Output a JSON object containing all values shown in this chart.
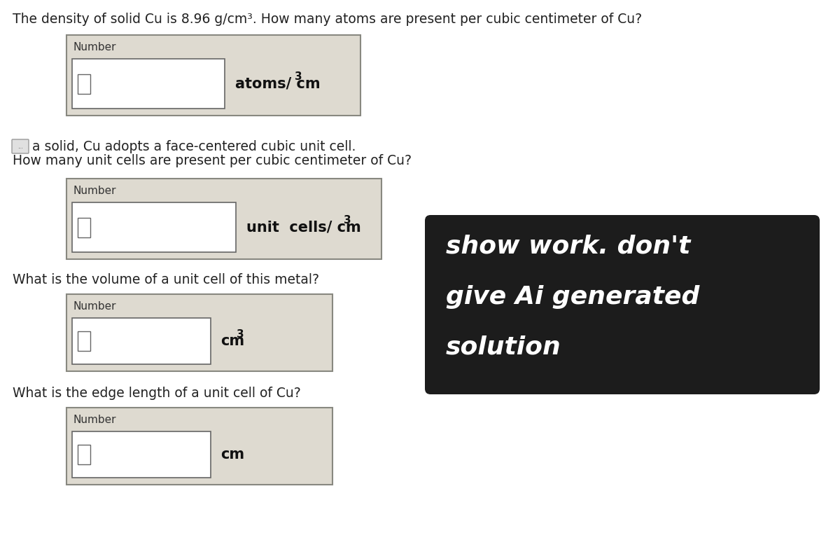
{
  "bg_color": "#ffffff",
  "title_text": "The density of solid Cu is 8.96 g/cm³. How many atoms are present per cubic centimeter of Cu?",
  "title_fontsize": 13.5,
  "body_fontsize": 13.5,
  "number_label": "Number",
  "box_bg": "#dedad0",
  "input_bg": "#ffffff",
  "q1_unit": "atoms/ cm",
  "q2_text1": "a solid, Cu adopts a face-centered cubic unit cell.",
  "q2_text2": "How many unit cells are present per cubic centimeter of Cu?",
  "q2_unit": "unit  cells/ cm",
  "q3_text": "What is the volume of a unit cell of this metal?",
  "q3_unit": "cm",
  "q4_text": "What is the edge length of a unit cell of Cu?",
  "q4_unit": "cm",
  "overlay_text1": "show work. don't",
  "overlay_text2": "give Ai generated",
  "overlay_text3": "solution",
  "overlay_bg": "#1c1c1c",
  "overlay_text_color": "#ffffff",
  "overlay_fontsize": 26
}
